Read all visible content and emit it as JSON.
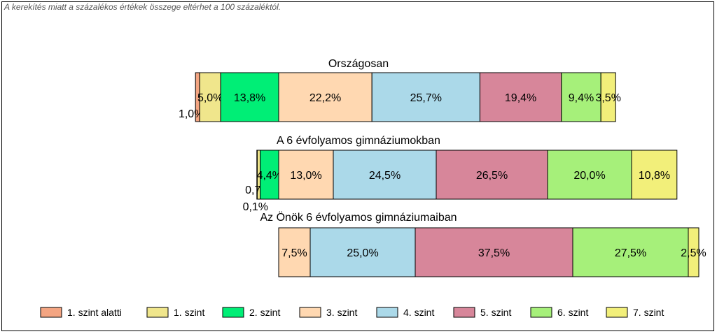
{
  "note": "A kerekítés miatt a  százalékos értékek összege eltérhet a 100 százaléktól.",
  "colors": [
    "#f4a582",
    "#f0e68c",
    "#00ee76",
    "#ffd8b1",
    "#abd9e9",
    "#d7869a",
    "#a6f07a",
    "#f2ef7a"
  ],
  "chart_data": {
    "type": "bar",
    "orientation": "horizontal",
    "stacked": true,
    "legend_position": "bottom",
    "categories": [
      "Országosan",
      "A 6 évfolyamos gimnáziumokban",
      "Az Önök 6 évfolyamos gimnáziumaiban"
    ],
    "series": [
      {
        "name": "1. szint alatti",
        "values": [
          1.0,
          0.1,
          0.0
        ]
      },
      {
        "name": "1. szint",
        "values": [
          5.0,
          0.7,
          0.0
        ]
      },
      {
        "name": "2. szint",
        "values": [
          13.8,
          4.4,
          0.0
        ]
      },
      {
        "name": "3. szint",
        "values": [
          22.2,
          13.0,
          7.5
        ]
      },
      {
        "name": "4. szint",
        "values": [
          25.7,
          24.5,
          25.0
        ]
      },
      {
        "name": "5. szint",
        "values": [
          19.4,
          26.5,
          37.5
        ]
      },
      {
        "name": "6. szint",
        "values": [
          9.4,
          20.0,
          27.5
        ]
      },
      {
        "name": "7. szint",
        "values": [
          3.5,
          10.8,
          2.5
        ]
      }
    ],
    "data_labels": [
      [
        "1,0%",
        "5,0%",
        "13,8%",
        "22,2%",
        "25,7%",
        "19,4%",
        "9,4%",
        "3,5%"
      ],
      [
        "0,1%",
        "0,7%",
        "4,4%",
        "13,0%",
        "24,5%",
        "26,5%",
        "20,0%",
        "10,8%"
      ],
      [
        "",
        "",
        "",
        "7,5%",
        "25,0%",
        "37,5%",
        "27,5%",
        "2,5%"
      ]
    ]
  }
}
